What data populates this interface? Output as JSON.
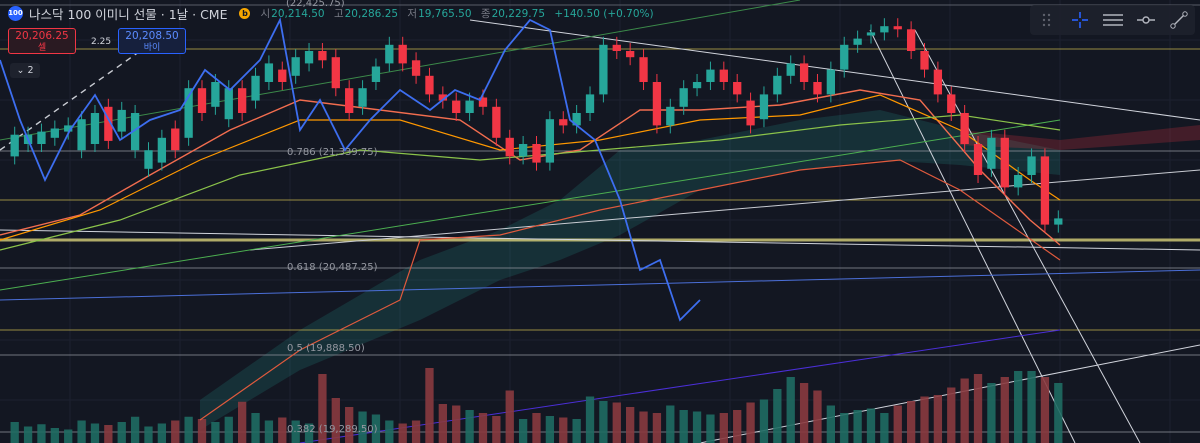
{
  "symbol": {
    "badge": "100",
    "title": "나스닥 100 이미니 선물 · 1날 · CME",
    "b_marker": "b"
  },
  "ohlc": {
    "open_key": "시",
    "open": "20,214.50",
    "high_key": "고",
    "high": "20,286.25",
    "low_key": "저",
    "low": "19,765.50",
    "close_key": "종",
    "close": "20,229.75",
    "change": "+140.50 (+0.70%)"
  },
  "quotes": {
    "sell_price": "20,206.25",
    "sell_label": "셀",
    "spread": "2.25",
    "buy_price": "20,208.50",
    "buy_label": "바이"
  },
  "collapse_label": "⌄ 2",
  "fib_levels": [
    {
      "label": "(22,425.75)"
    },
    {
      "label": "0.786 (21,339.75)"
    },
    {
      "label": "0.618 (20,487.25)"
    },
    {
      "label": "0.5 (19,888.50)"
    },
    {
      "label": "0.382 (19,289.50)"
    }
  ],
  "toolbar": {
    "items": [
      "drag-handle-icon",
      "crosshair-icon",
      "lines-icon",
      "node-icon",
      "trendline-icon"
    ]
  },
  "colors": {
    "up": "#26a69a",
    "down": "#f23645",
    "blue_line": "#2962ff",
    "fib_yellow": "#e6d96a",
    "background": "#131722"
  },
  "chart_data": {
    "type": "candlestick",
    "candles": [
      {
        "o": 0.56,
        "c": 0.63,
        "up": true
      },
      {
        "o": 0.6,
        "c": 0.63,
        "up": true
      },
      {
        "o": 0.6,
        "c": 0.64,
        "up": true
      },
      {
        "o": 0.62,
        "c": 0.65,
        "up": true
      },
      {
        "o": 0.64,
        "c": 0.66,
        "up": true
      },
      {
        "o": 0.58,
        "c": 0.68,
        "up": true
      },
      {
        "o": 0.6,
        "c": 0.7,
        "up": true
      },
      {
        "o": 0.72,
        "c": 0.61,
        "up": false
      },
      {
        "o": 0.64,
        "c": 0.71,
        "up": true
      },
      {
        "o": 0.58,
        "c": 0.7,
        "up": true
      },
      {
        "o": 0.52,
        "c": 0.58,
        "up": true
      },
      {
        "o": 0.54,
        "c": 0.62,
        "up": true
      },
      {
        "o": 0.65,
        "c": 0.58,
        "up": false
      },
      {
        "o": 0.62,
        "c": 0.78,
        "up": true
      },
      {
        "o": 0.78,
        "c": 0.7,
        "up": false
      },
      {
        "o": 0.72,
        "c": 0.8,
        "up": true
      },
      {
        "o": 0.68,
        "c": 0.78,
        "up": true
      },
      {
        "o": 0.78,
        "c": 0.7,
        "up": false
      },
      {
        "o": 0.74,
        "c": 0.82,
        "up": true
      },
      {
        "o": 0.8,
        "c": 0.86,
        "up": true
      },
      {
        "o": 0.84,
        "c": 0.8,
        "up": false
      },
      {
        "o": 0.82,
        "c": 0.88,
        "up": true
      },
      {
        "o": 0.86,
        "c": 0.9,
        "up": true
      },
      {
        "o": 0.9,
        "c": 0.87,
        "up": false
      },
      {
        "o": 0.88,
        "c": 0.78,
        "up": false
      },
      {
        "o": 0.78,
        "c": 0.7,
        "up": false
      },
      {
        "o": 0.72,
        "c": 0.78,
        "up": true
      },
      {
        "o": 0.8,
        "c": 0.85,
        "up": true
      },
      {
        "o": 0.86,
        "c": 0.92,
        "up": true
      },
      {
        "o": 0.92,
        "c": 0.86,
        "up": false
      },
      {
        "o": 0.87,
        "c": 0.82,
        "up": false
      },
      {
        "o": 0.82,
        "c": 0.76,
        "up": false
      },
      {
        "o": 0.76,
        "c": 0.74,
        "up": false
      },
      {
        "o": 0.74,
        "c": 0.7,
        "up": false
      },
      {
        "o": 0.7,
        "c": 0.74,
        "up": true
      },
      {
        "o": 0.75,
        "c": 0.72,
        "up": false
      },
      {
        "o": 0.72,
        "c": 0.62,
        "up": false
      },
      {
        "o": 0.62,
        "c": 0.56,
        "up": false
      },
      {
        "o": 0.56,
        "c": 0.6,
        "up": true
      },
      {
        "o": 0.6,
        "c": 0.54,
        "up": false
      },
      {
        "o": 0.54,
        "c": 0.68,
        "up": true
      },
      {
        "o": 0.68,
        "c": 0.66,
        "up": false
      },
      {
        "o": 0.66,
        "c": 0.7,
        "up": true
      },
      {
        "o": 0.7,
        "c": 0.76,
        "up": true
      },
      {
        "o": 0.76,
        "c": 0.92,
        "up": true
      },
      {
        "o": 0.92,
        "c": 0.9,
        "up": false
      },
      {
        "o": 0.9,
        "c": 0.88,
        "up": false
      },
      {
        "o": 0.88,
        "c": 0.8,
        "up": false
      },
      {
        "o": 0.8,
        "c": 0.66,
        "up": false
      },
      {
        "o": 0.66,
        "c": 0.72,
        "up": true
      },
      {
        "o": 0.72,
        "c": 0.78,
        "up": true
      },
      {
        "o": 0.78,
        "c": 0.8,
        "up": true
      },
      {
        "o": 0.8,
        "c": 0.84,
        "up": true
      },
      {
        "o": 0.84,
        "c": 0.8,
        "up": false
      },
      {
        "o": 0.8,
        "c": 0.76,
        "up": false
      },
      {
        "o": 0.74,
        "c": 0.66,
        "up": false
      },
      {
        "o": 0.68,
        "c": 0.76,
        "up": true
      },
      {
        "o": 0.76,
        "c": 0.82,
        "up": true
      },
      {
        "o": 0.82,
        "c": 0.86,
        "up": true
      },
      {
        "o": 0.86,
        "c": 0.8,
        "up": false
      },
      {
        "o": 0.8,
        "c": 0.76,
        "up": false
      },
      {
        "o": 0.76,
        "c": 0.84,
        "up": true
      },
      {
        "o": 0.84,
        "c": 0.92,
        "up": true
      },
      {
        "o": 0.92,
        "c": 0.94,
        "up": true
      },
      {
        "o": 0.95,
        "c": 0.96,
        "up": true
      },
      {
        "o": 0.96,
        "c": 0.98,
        "up": true
      },
      {
        "o": 0.98,
        "c": 0.97,
        "up": false
      },
      {
        "o": 0.97,
        "c": 0.9,
        "up": false
      },
      {
        "o": 0.9,
        "c": 0.84,
        "up": false
      },
      {
        "o": 0.84,
        "c": 0.76,
        "up": false
      },
      {
        "o": 0.76,
        "c": 0.7,
        "up": false
      },
      {
        "o": 0.7,
        "c": 0.6,
        "up": false
      },
      {
        "o": 0.6,
        "c": 0.5,
        "up": false
      },
      {
        "o": 0.52,
        "c": 0.62,
        "up": true
      },
      {
        "o": 0.62,
        "c": 0.46,
        "up": false
      },
      {
        "o": 0.46,
        "c": 0.5,
        "up": true
      },
      {
        "o": 0.5,
        "c": 0.56,
        "up": true
      },
      {
        "o": 0.56,
        "c": 0.34,
        "up": false
      },
      {
        "o": 0.34,
        "c": 0.36,
        "up": true
      }
    ],
    "volumes": [
      0.28,
      0.22,
      0.25,
      0.2,
      0.18,
      0.3,
      0.26,
      0.24,
      0.28,
      0.35,
      0.22,
      0.26,
      0.3,
      0.35,
      0.32,
      0.28,
      0.35,
      0.55,
      0.4,
      0.3,
      0.34,
      0.3,
      0.26,
      0.92,
      0.6,
      0.48,
      0.42,
      0.38,
      0.3,
      0.26,
      0.3,
      1.0,
      0.52,
      0.5,
      0.44,
      0.4,
      0.36,
      0.7,
      0.32,
      0.4,
      0.36,
      0.34,
      0.32,
      0.62,
      0.56,
      0.54,
      0.48,
      0.42,
      0.4,
      0.5,
      0.44,
      0.42,
      0.38,
      0.4,
      0.44,
      0.54,
      0.58,
      0.72,
      0.88,
      0.8,
      0.7,
      0.5,
      0.4,
      0.44,
      0.46,
      0.4,
      0.5,
      0.56,
      0.62,
      0.64,
      0.74,
      0.86,
      0.92,
      0.8,
      0.88,
      0.96,
      0.96,
      0.88,
      0.8
    ]
  }
}
